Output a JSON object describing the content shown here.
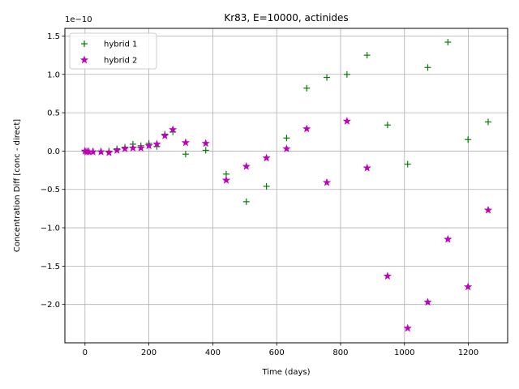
{
  "chart_data": {
    "type": "scatter",
    "title": "Kr83, E=10000, actinides",
    "xlabel": "Time (days)",
    "ylabel": "Concentration Diff [conc - direct]",
    "offset_text": "1e−10",
    "y_scale": 1e-10,
    "xlim": [
      -63,
      1323
    ],
    "ylim": [
      -2.5,
      1.6
    ],
    "xticks": [
      0,
      200,
      400,
      600,
      800,
      1000,
      1200
    ],
    "xtick_labels": [
      "0",
      "200",
      "400",
      "600",
      "800",
      "1000",
      "1200"
    ],
    "yticks": [
      -2.0,
      -1.5,
      -1.0,
      -0.5,
      0.0,
      0.5,
      1.0,
      1.5
    ],
    "ytick_labels": [
      "−2.0",
      "−1.5",
      "−1.0",
      "−0.5",
      "0.0",
      "0.5",
      "1.0",
      "1.5"
    ],
    "grid": true,
    "legend_position": "upper left",
    "series": [
      {
        "name": "hybrid 1",
        "color": "#008000",
        "marker": "plus",
        "x": [
          0,
          6,
          12,
          25,
          50,
          75,
          100,
          125,
          150,
          175,
          200,
          225,
          250,
          275,
          315,
          378,
          442,
          505,
          568,
          631,
          694,
          757,
          820,
          883,
          947,
          1010,
          1073,
          1136,
          1199,
          1262
        ],
        "y": [
          0.0,
          0.0,
          0.0,
          0.0,
          0.0,
          0.0,
          0.03,
          0.05,
          0.09,
          0.07,
          0.1,
          0.06,
          0.22,
          0.25,
          -0.04,
          0.01,
          -0.3,
          -0.66,
          -0.46,
          0.17,
          0.82,
          0.96,
          1.0,
          1.25,
          0.34,
          -0.17,
          1.09,
          1.42,
          0.15,
          0.38
        ]
      },
      {
        "name": "hybrid 2",
        "color": "#bf00bf",
        "marker": "star",
        "x": [
          0,
          6,
          12,
          25,
          50,
          75,
          100,
          125,
          150,
          175,
          200,
          225,
          250,
          275,
          315,
          378,
          442,
          505,
          568,
          631,
          694,
          757,
          820,
          883,
          947,
          1010,
          1073,
          1136,
          1199,
          1262
        ],
        "y": [
          0.0,
          -0.01,
          -0.01,
          -0.01,
          -0.01,
          -0.02,
          0.01,
          0.03,
          0.04,
          0.04,
          0.07,
          0.09,
          0.2,
          0.28,
          0.11,
          0.1,
          -0.38,
          -0.2,
          -0.09,
          0.03,
          0.29,
          -0.41,
          0.39,
          -0.22,
          -1.63,
          -2.31,
          -1.97,
          -1.15,
          -1.77,
          -0.77
        ]
      }
    ]
  }
}
